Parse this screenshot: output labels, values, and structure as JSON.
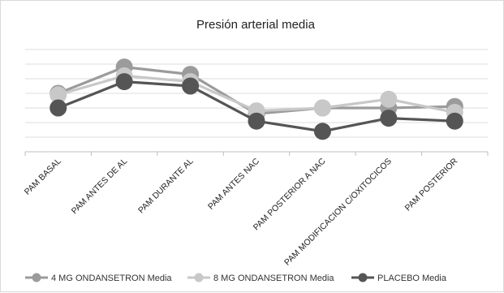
{
  "chart_data": {
    "type": "line",
    "title": "Presión arterial media",
    "xlabel": "",
    "ylabel": "",
    "categories": [
      "PAM BASAL",
      "PAM ANTES DE AL",
      "PAM DURANTE AL",
      "PAM ANTES NAC",
      "PAM POSTERIOR A NAC",
      "PAM MODIFICACION C/OXITOCICOS",
      "PAM POSTERIOR"
    ],
    "series": [
      {
        "name": "4 MG ONDANSETRON Media",
        "color": "#9b9b9b",
        "values": [
          4.0,
          5.8,
          5.3,
          2.6,
          3.0,
          3.0,
          3.1
        ]
      },
      {
        "name": "8 MG ONDANSETRON Media",
        "color": "#c8c8c8",
        "values": [
          3.9,
          5.2,
          4.8,
          2.8,
          3.0,
          3.6,
          2.7
        ]
      },
      {
        "name": "PLACEBO Media",
        "color": "#555555",
        "values": [
          3.0,
          4.8,
          4.5,
          2.1,
          1.4,
          2.3,
          2.1
        ]
      }
    ],
    "ylim": [
      0,
      7
    ],
    "grid": true,
    "legend": "bottom"
  }
}
